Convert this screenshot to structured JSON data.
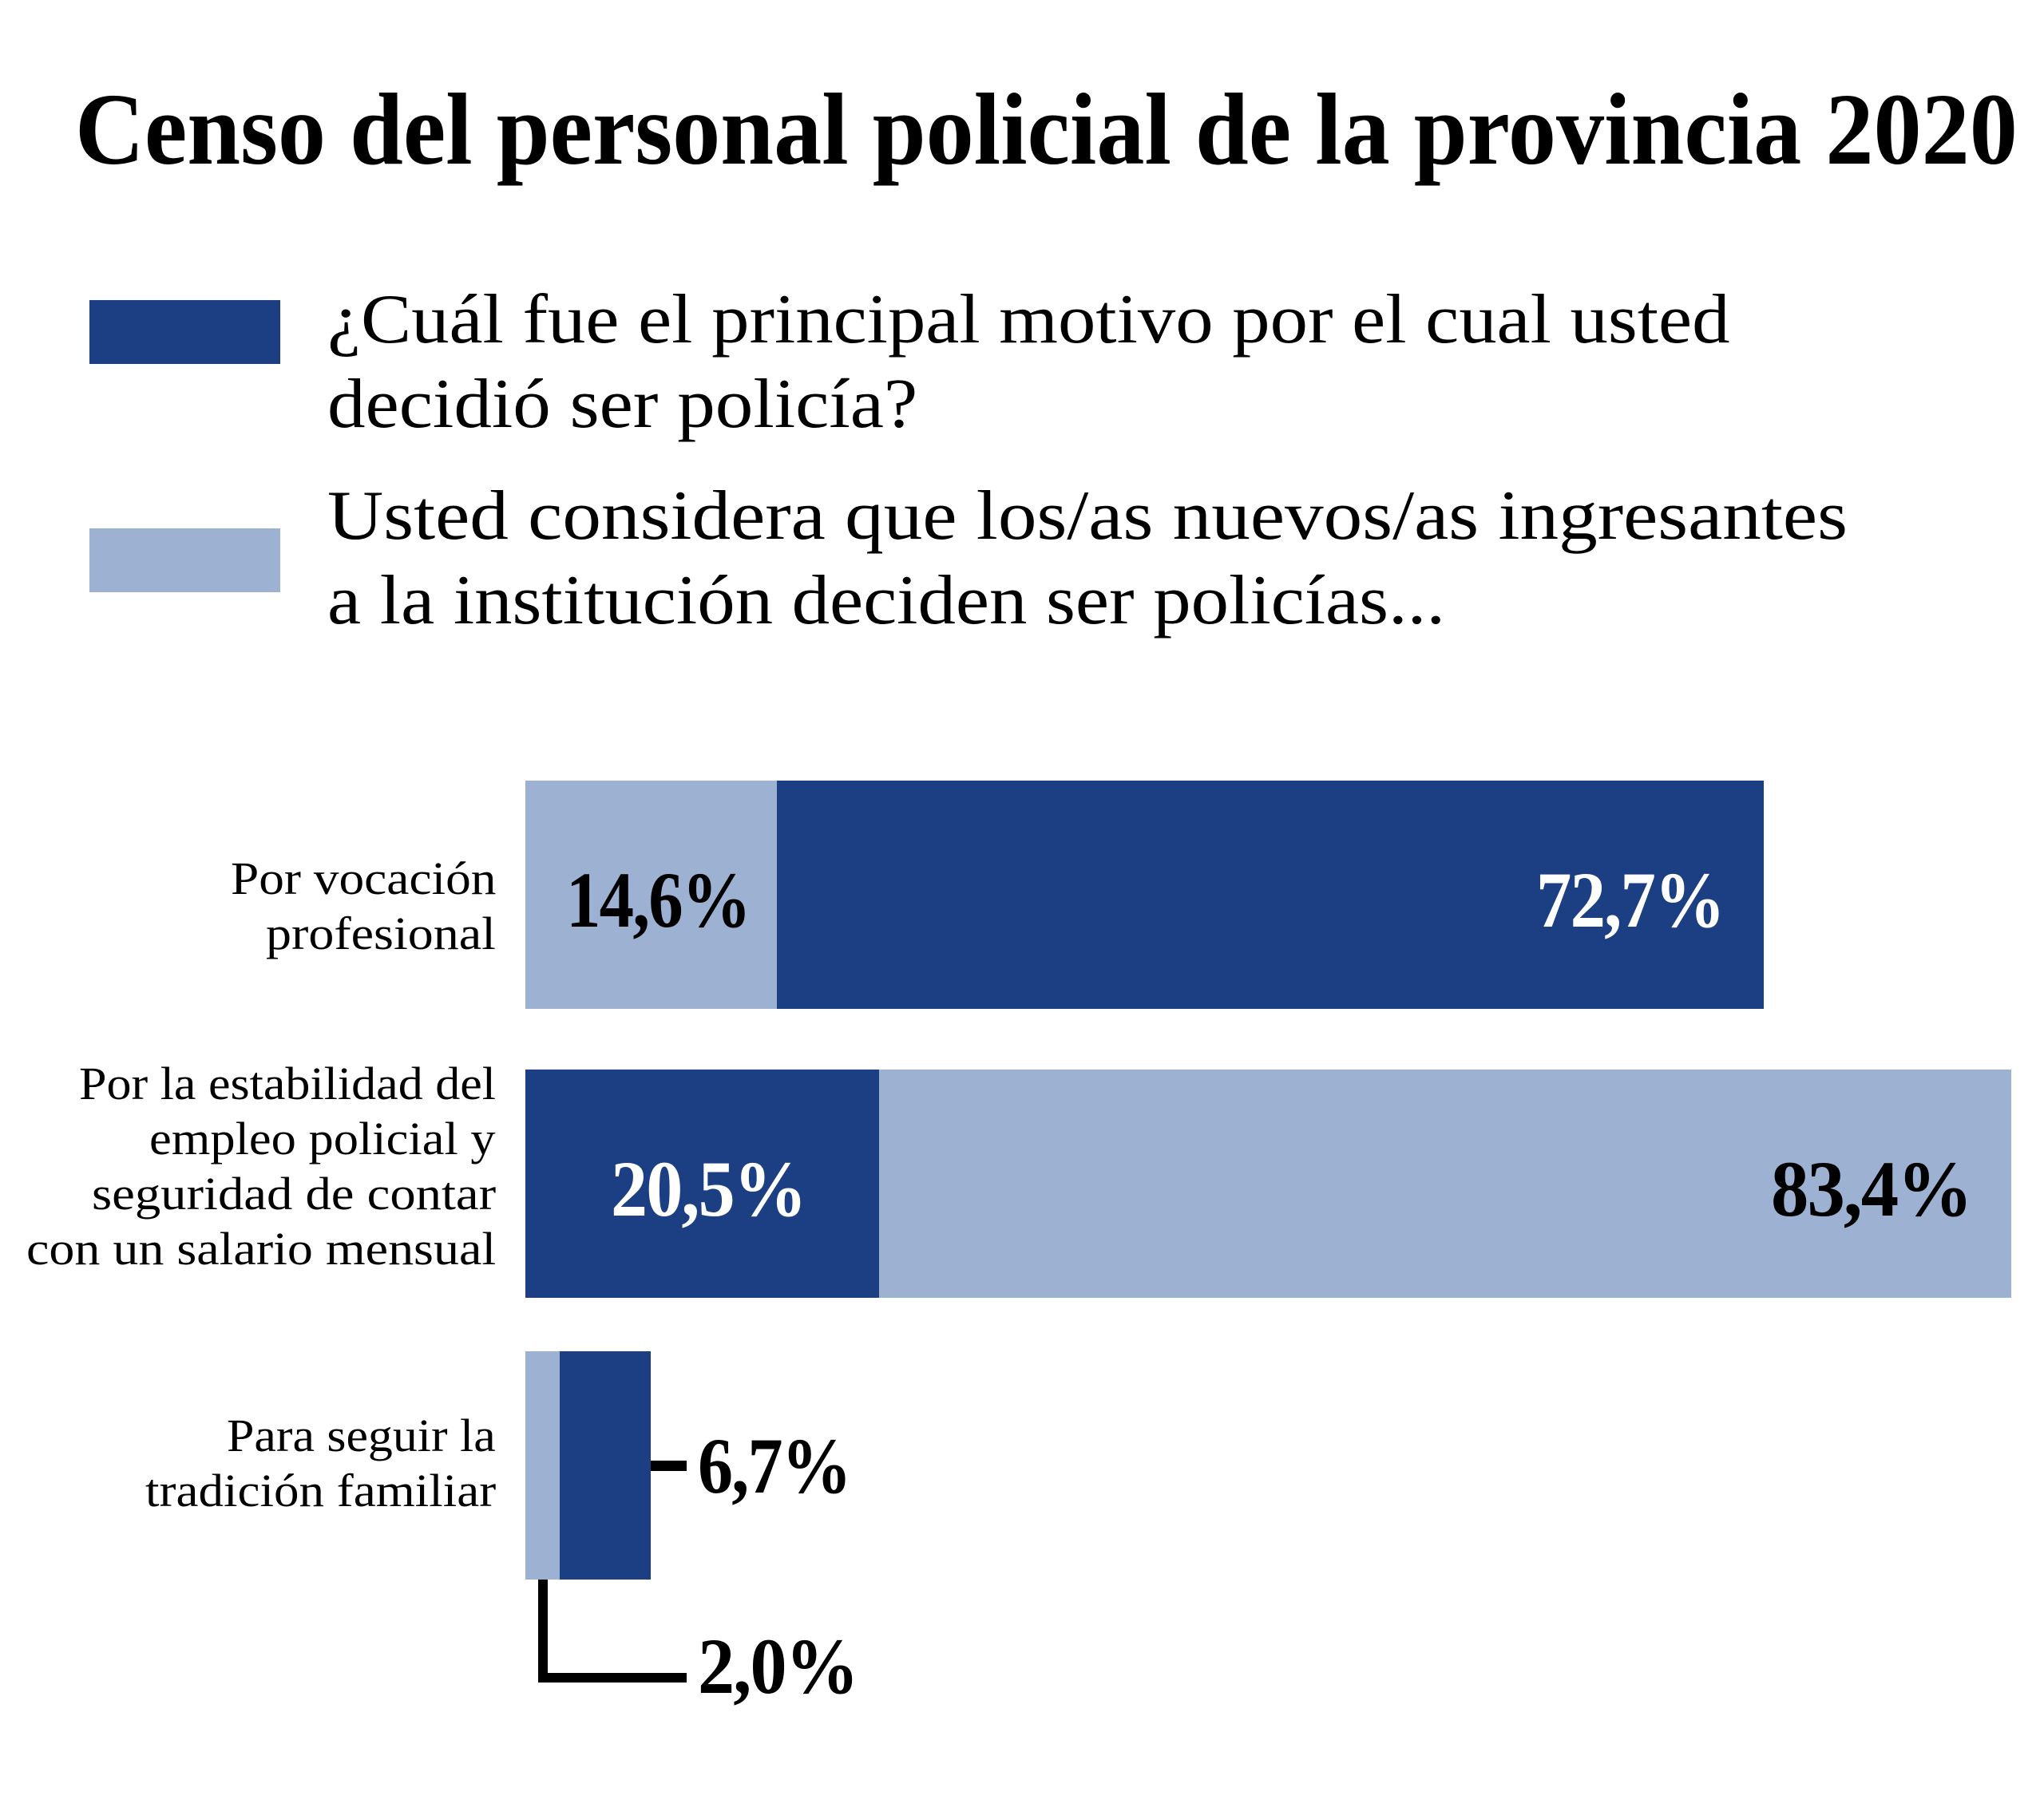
{
  "chart_data": {
    "type": "bar",
    "orientation": "horizontal",
    "title": "Censo del personal policial de la provincia 2020",
    "categories": [
      [
        "Por vocación",
        "profesional"
      ],
      [
        "Por la estabilidad del",
        "empleo policial y",
        "seguridad de contar",
        "con un salario mensual"
      ],
      [
        "Para seguir la",
        "tradición familiar"
      ]
    ],
    "series": [
      {
        "name_lines": [
          "¿Cuál fue el principal motivo por el cual usted",
          "decidió ser policía?"
        ],
        "color": "#1c3f84",
        "values": [
          72.7,
          20.5,
          6.7
        ],
        "labels": [
          "72,7%",
          "20,5%",
          "6,7%"
        ]
      },
      {
        "name_lines": [
          "Usted considera que los/as nuevos/as ingresantes",
          "a la institución deciden ser policías..."
        ],
        "color": "#9db1d3",
        "values": [
          14.6,
          83.4,
          2.0
        ],
        "labels": [
          "14,6%",
          "83,4%",
          "2,0%"
        ]
      }
    ],
    "unit": "%",
    "xlabel": "",
    "ylabel": "",
    "legend_position": "top-left",
    "grid": false
  }
}
